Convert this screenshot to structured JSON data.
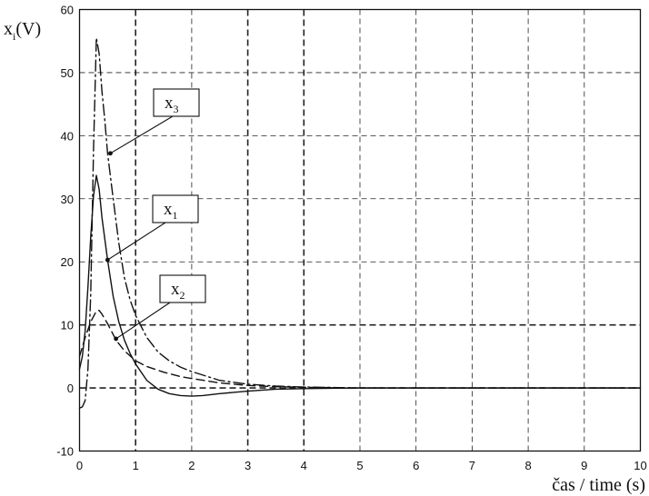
{
  "chart_data": {
    "type": "line",
    "title": "",
    "xlabel": "čas / time (s)",
    "ylabel_main": "x",
    "ylabel_sub": "i",
    "ylabel_unit": "(V)",
    "xlim": [
      0,
      10
    ],
    "ylim": [
      -10,
      60
    ],
    "xticks": [
      0,
      1,
      2,
      3,
      4,
      5,
      6,
      7,
      8,
      9,
      10
    ],
    "yticks": [
      -10,
      0,
      10,
      20,
      30,
      40,
      50,
      60
    ],
    "xtick_labels": [
      "0",
      "1",
      "2",
      "3",
      "4",
      "5",
      "6",
      "7",
      "8",
      "9",
      "10"
    ],
    "ytick_labels": [
      "-10",
      "0",
      "10",
      "20",
      "30",
      "40",
      "50",
      "60"
    ],
    "grid": true,
    "bold_grid_x": [
      1,
      3,
      4
    ],
    "bold_grid_y": [
      0,
      10
    ],
    "series": [
      {
        "name": "x1",
        "label_main": "x",
        "label_sub": "1",
        "style": "solid",
        "color": "#111111",
        "x": [
          0,
          0.05,
          0.1,
          0.15,
          0.2,
          0.25,
          0.3,
          0.35,
          0.4,
          0.5,
          0.6,
          0.7,
          0.8,
          0.9,
          1.0,
          1.2,
          1.4,
          1.6,
          1.8,
          2.0,
          2.2,
          2.5,
          3.0,
          3.5,
          4.0,
          5.0,
          6.0,
          7.0,
          8.0,
          9.0,
          10.0
        ],
        "y": [
          3,
          5,
          9,
          16,
          24,
          30.5,
          33.7,
          31.5,
          27,
          20.3,
          14.5,
          10.5,
          7.6,
          5.5,
          3.8,
          1.2,
          -0.2,
          -0.9,
          -1.2,
          -1.3,
          -1.2,
          -0.9,
          -0.5,
          -0.2,
          -0.1,
          0,
          0,
          0,
          0,
          0,
          0
        ]
      },
      {
        "name": "x2",
        "label_main": "x",
        "label_sub": "2",
        "style": "dash",
        "color": "#111111",
        "x": [
          0,
          0.1,
          0.2,
          0.3,
          0.35,
          0.4,
          0.5,
          0.65,
          0.8,
          1.0,
          1.2,
          1.5,
          1.8,
          2.0,
          2.5,
          3.0,
          3.5,
          4.0,
          5.0,
          6.0,
          7.0,
          8.0,
          9.0,
          10.0
        ],
        "y": [
          5,
          8,
          10.5,
          12.2,
          12.3,
          11.7,
          10.2,
          7.6,
          5.9,
          4.3,
          3.4,
          2.5,
          1.8,
          1.5,
          0.8,
          0.4,
          0.2,
          0.1,
          0,
          0,
          0,
          0,
          0,
          0
        ]
      },
      {
        "name": "x3",
        "label_main": "x",
        "label_sub": "3",
        "style": "dashdot",
        "color": "#111111",
        "x": [
          0,
          0.05,
          0.1,
          0.15,
          0.2,
          0.25,
          0.3,
          0.35,
          0.4,
          0.45,
          0.5,
          0.6,
          0.7,
          0.8,
          0.9,
          1.0,
          1.2,
          1.4,
          1.6,
          1.8,
          2.0,
          2.5,
          3.0,
          3.5,
          4.0,
          5.0,
          6.0,
          7.0,
          8.0,
          9.0,
          10.0
        ],
        "y": [
          -3.2,
          -3,
          -2,
          3,
          15,
          38,
          55.5,
          53,
          47,
          42.5,
          37.2,
          30,
          23,
          17.5,
          14,
          11.5,
          8,
          5.7,
          4.3,
          3.3,
          2.6,
          1.2,
          0.6,
          0.3,
          0.15,
          0,
          0,
          0,
          0,
          0,
          0
        ]
      }
    ],
    "annotations": [
      {
        "series": "x3",
        "x": 0.55,
        "y": 37.2
      },
      {
        "series": "x1",
        "x": 0.5,
        "y": 20.3
      },
      {
        "series": "x2",
        "x": 0.65,
        "y": 7.8
      }
    ]
  }
}
